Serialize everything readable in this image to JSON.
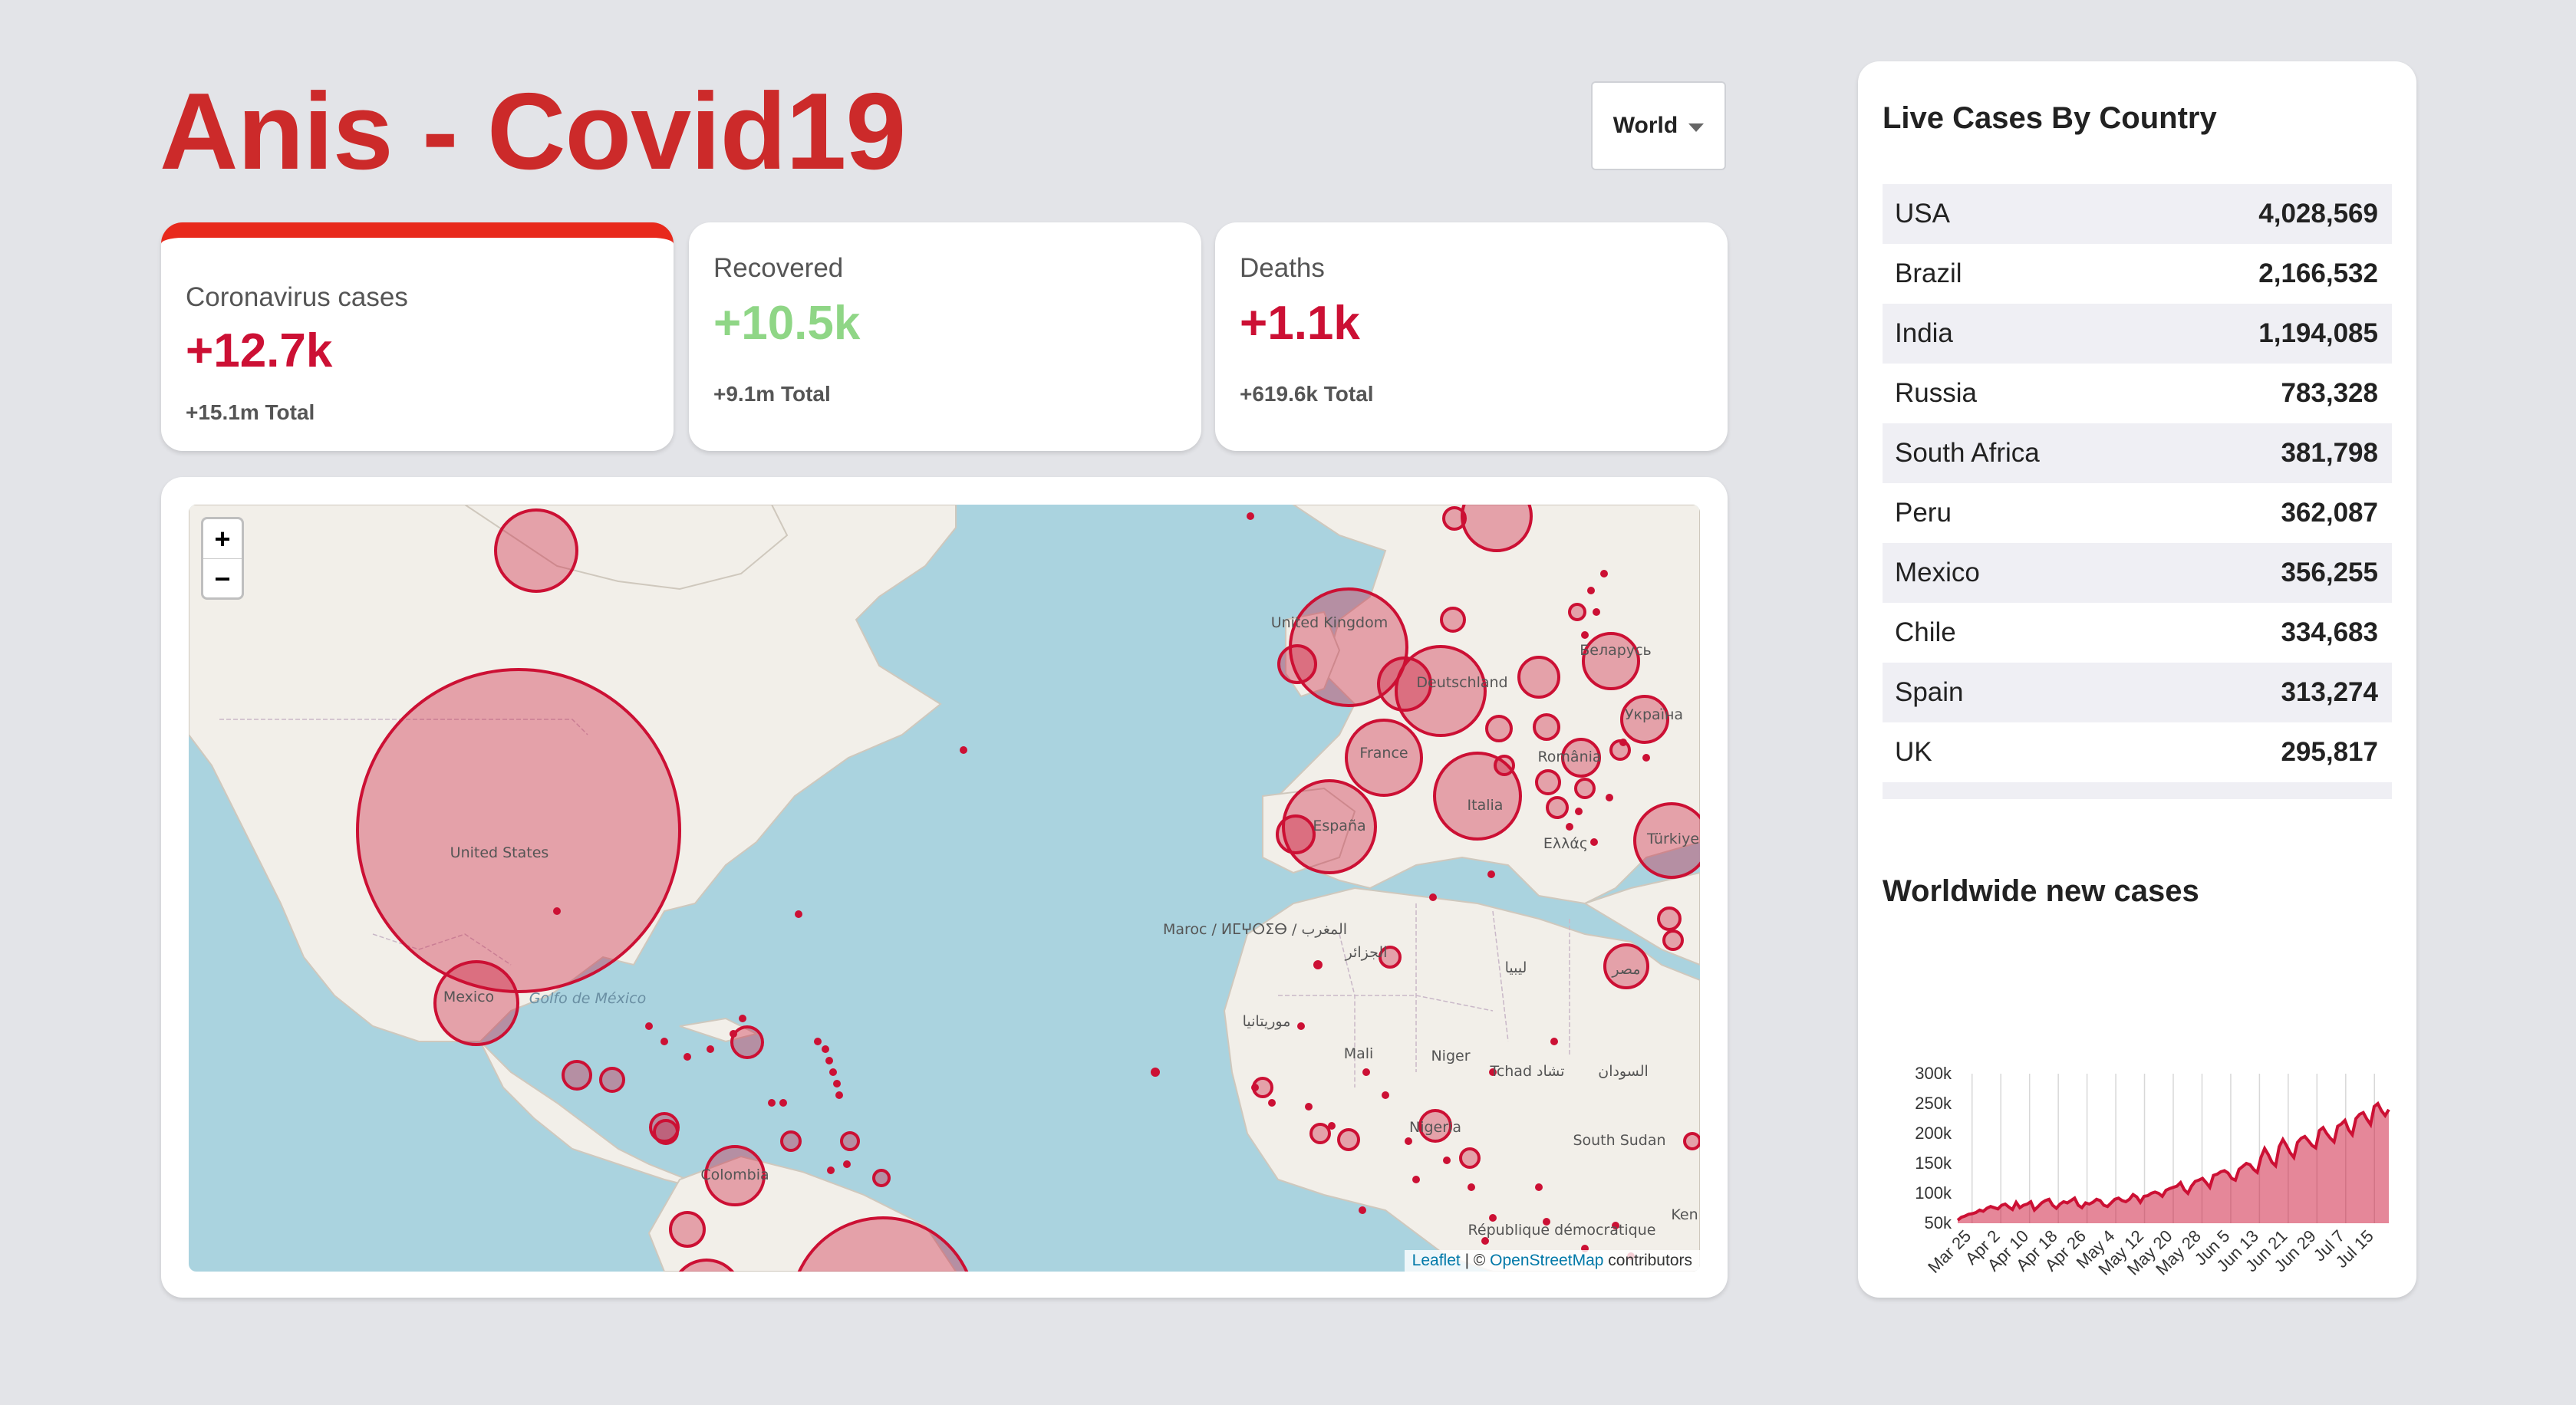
{
  "header": {
    "title": "Anis - Covid19",
    "country_select": "World"
  },
  "colors": {
    "brand_red": "#cc2a2a",
    "cases_red": "#cc1034",
    "recovered_green": "#7dd71d",
    "map_circle": "#cc1034"
  },
  "stats": [
    {
      "label": "Coronavirus cases",
      "value": "+12.7k",
      "total": "+15.1m Total",
      "active": true
    },
    {
      "label": "Recovered",
      "value": "+10.5k",
      "total": "+9.1m Total",
      "active": false
    },
    {
      "label": "Deaths",
      "value": "+1.1k",
      "total": "+619.6k Total",
      "active": false
    }
  ],
  "map": {
    "zoom_in": "+",
    "zoom_out": "−",
    "attribution": {
      "leaflet": "Leaflet",
      "sep": " | © ",
      "osm": "OpenStreetMap",
      "tail": " contributors"
    },
    "labels": [
      "United States",
      "Mexico",
      "Golfo de México",
      "Colombia",
      "United Kingdom",
      "Deutschland",
      "France",
      "España",
      "Italia",
      "Беларусь",
      "Україна",
      "România",
      "Ελλάς",
      "Türkiye",
      "Maroc / ⵍⵎⵖⵔⵉⴱ / المغرب",
      "الجزائر",
      "ليبيا",
      "مصر",
      "موريتانيا",
      "Mali",
      "Niger",
      "Tchad تشاد",
      "السودان",
      "Nigeria",
      "South Sudan",
      "République démocratique",
      "Ken"
    ],
    "markers": [
      {
        "name": "United States",
        "cases": 4028569
      },
      {
        "name": "Brazil",
        "cases": 2166532
      },
      {
        "name": "Mexico",
        "cases": 356255
      },
      {
        "name": "Spain",
        "cases": 313274
      },
      {
        "name": "United Kingdom",
        "cases": 295817
      }
    ]
  },
  "sidebar": {
    "live_title": "Live Cases By Country",
    "countries": [
      {
        "country": "USA",
        "cases": "4,028,569"
      },
      {
        "country": "Brazil",
        "cases": "2,166,532"
      },
      {
        "country": "India",
        "cases": "1,194,085"
      },
      {
        "country": "Russia",
        "cases": "783,328"
      },
      {
        "country": "South Africa",
        "cases": "381,798"
      },
      {
        "country": "Peru",
        "cases": "362,087"
      },
      {
        "country": "Mexico",
        "cases": "356,255"
      },
      {
        "country": "Chile",
        "cases": "334,683"
      },
      {
        "country": "Spain",
        "cases": "313,274"
      },
      {
        "country": "UK",
        "cases": "295,817"
      }
    ],
    "chart_title": "Worldwide new cases"
  },
  "chart_data": {
    "type": "area",
    "title": "Worldwide new cases",
    "xlabel": "",
    "ylabel": "",
    "ylim": [
      50000,
      300000
    ],
    "yticks": [
      "50k",
      "100k",
      "150k",
      "200k",
      "250k",
      "300k"
    ],
    "xticks": [
      "Mar 25",
      "Apr 2",
      "Apr 10",
      "Apr 18",
      "Apr 26",
      "May 4",
      "May 12",
      "May 20",
      "May 28",
      "Jun 5",
      "Jun 13",
      "Jun 21",
      "Jun 29",
      "Jul 7",
      "Jul 15"
    ],
    "x_start": "Mar 25",
    "x_end": "Jul 21",
    "color": "#cc1034",
    "series": [
      {
        "values": [
          55000,
          60000,
          62000,
          65000,
          66000,
          68000,
          72000,
          70000,
          75000,
          78000,
          76000,
          74000,
          80000,
          82000,
          77000,
          73000,
          85000,
          76000,
          80000,
          82000,
          86000,
          72000,
          78000,
          84000,
          88000,
          90000,
          80000,
          75000,
          82000,
          86000,
          84000,
          88000,
          92000,
          80000,
          76000,
          84000,
          82000,
          85000,
          90000,
          88000,
          80000,
          78000,
          84000,
          90000,
          92000,
          88000,
          86000,
          90000,
          98000,
          94000,
          85000,
          95000,
          96000,
          100000,
          102000,
          100000,
          95000,
          105000,
          108000,
          110000,
          112000,
          118000,
          106000,
          100000,
          112000,
          120000,
          122000,
          125000,
          118000,
          110000,
          130000,
          132000,
          136000,
          138000,
          134000,
          125000,
          122000,
          140000,
          145000,
          150000,
          148000,
          140000,
          135000,
          160000,
          175000,
          165000,
          152000,
          146000,
          178000,
          190000,
          180000,
          168000,
          160000,
          185000,
          192000,
          195000,
          188000,
          180000,
          176000,
          205000,
          210000,
          200000,
          192000,
          186000,
          212000,
          216000,
          222000,
          206000,
          198000,
          225000,
          232000,
          235000,
          224000,
          215000,
          245000,
          250000,
          238000,
          230000,
          240000
        ]
      }
    ]
  }
}
